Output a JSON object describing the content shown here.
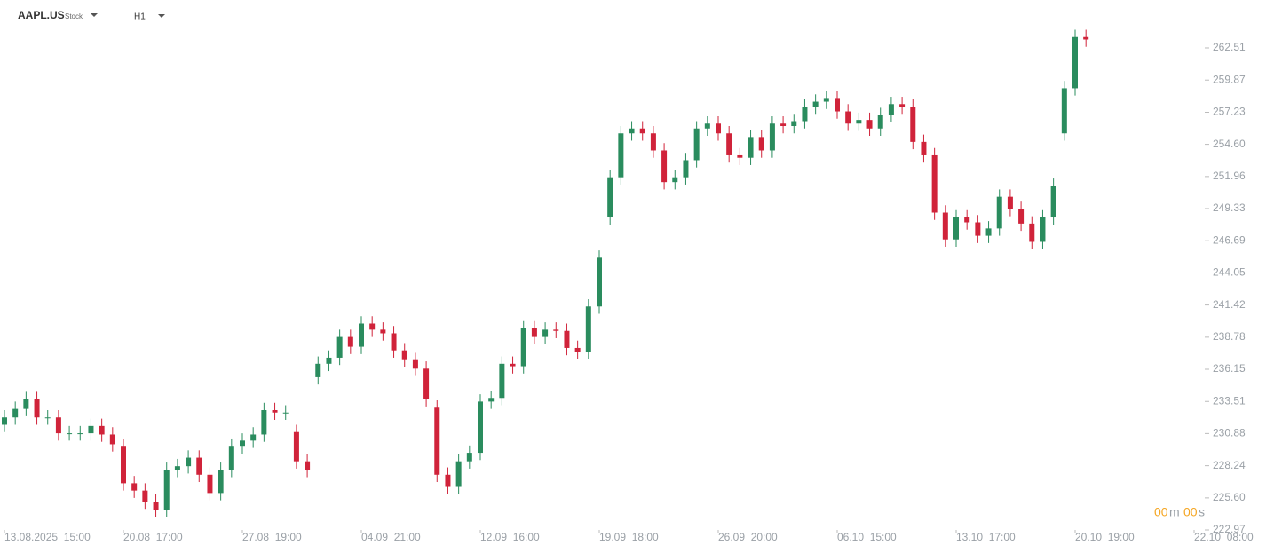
{
  "header": {
    "symbol": "AAPL.US",
    "symbol_type": "Stock",
    "timeframe": "H1"
  },
  "countdown": {
    "minutes": "00",
    "minutes_unit": "m",
    "seconds": "00",
    "seconds_unit": "s"
  },
  "chart_data": {
    "type": "candlestick",
    "categories": [
      "13.08.2025  15:00",
      null,
      null,
      null,
      null,
      null,
      null,
      null,
      null,
      null,
      null,
      "20.08  17:00",
      null,
      null,
      null,
      null,
      null,
      null,
      null,
      null,
      null,
      null,
      "27.08  19:00",
      null,
      null,
      null,
      null,
      null,
      null,
      null,
      null,
      null,
      null,
      "04.09  21:00",
      null,
      null,
      null,
      null,
      null,
      null,
      null,
      null,
      null,
      null,
      "12.09  16:00",
      null,
      null,
      null,
      null,
      null,
      null,
      null,
      null,
      null,
      null,
      "19.09  18:00",
      null,
      null,
      null,
      null,
      null,
      null,
      null,
      null,
      null,
      null,
      "26.09  20:00",
      null,
      null,
      null,
      null,
      null,
      null,
      null,
      null,
      null,
      null,
      "06.10  15:00",
      null,
      null,
      null,
      null,
      null,
      null,
      null,
      null,
      null,
      null,
      "13.10  17:00",
      null,
      null,
      null,
      null,
      null,
      null,
      null,
      null,
      null,
      null,
      "20.10  19:00",
      null,
      null,
      null,
      null,
      null,
      null,
      null,
      null,
      null,
      null,
      "22.10  08:00"
    ],
    "open": [
      231.6,
      232.2,
      232.9,
      233.7,
      232.2,
      232.2,
      230.9,
      230.9,
      230.9,
      231.5,
      230.8,
      229.8,
      226.8,
      226.2,
      225.3,
      224.6,
      227.9,
      228.2,
      228.9,
      227.5,
      226.0,
      227.9,
      229.8,
      230.3,
      230.8,
      232.8,
      232.6,
      231.0,
      228.6,
      235.5,
      236.6,
      237.1,
      238.8,
      238.0,
      239.9,
      239.4,
      239.1,
      237.7,
      236.9,
      236.2,
      233.0,
      227.5,
      226.5,
      228.6,
      229.3,
      233.5,
      233.8,
      236.6,
      236.4,
      239.5,
      238.8,
      239.4,
      239.3,
      237.9,
      237.6,
      241.3,
      248.6,
      251.9,
      255.5,
      255.9,
      255.5,
      254.1,
      251.5,
      251.9,
      253.3,
      255.9,
      256.3,
      255.5,
      253.7,
      253.5,
      255.2,
      254.1,
      256.3,
      256.1,
      256.5,
      257.7,
      258.1,
      258.4,
      257.3,
      256.3,
      256.6,
      255.9,
      257.0,
      257.9,
      257.7,
      254.8,
      253.7,
      249.0,
      246.8,
      248.6,
      248.2,
      247.1,
      247.7,
      250.3,
      249.3,
      248.1,
      246.6,
      248.6,
      255.5,
      259.2,
      263.4,
      null,
      null,
      null,
      null,
      null,
      null,
      null,
      null,
      null,
      null
    ],
    "high": [
      232.8,
      233.5,
      234.3,
      234.3,
      232.8,
      232.8,
      231.5,
      231.5,
      232.1,
      232.1,
      231.4,
      230.4,
      227.4,
      226.8,
      225.9,
      228.5,
      228.8,
      229.5,
      229.5,
      228.1,
      228.5,
      230.4,
      230.9,
      231.4,
      233.4,
      233.4,
      233.2,
      231.6,
      229.2,
      237.2,
      237.7,
      239.4,
      239.4,
      240.5,
      240.5,
      240.0,
      239.7,
      238.3,
      237.5,
      236.8,
      233.6,
      228.1,
      229.2,
      229.9,
      234.1,
      234.4,
      237.2,
      237.2,
      240.1,
      240.1,
      240.0,
      240.0,
      239.9,
      238.5,
      241.9,
      245.9,
      252.5,
      256.1,
      256.5,
      256.5,
      256.1,
      254.7,
      252.5,
      253.9,
      256.5,
      256.9,
      256.9,
      256.1,
      254.3,
      255.8,
      255.8,
      256.9,
      256.9,
      257.1,
      258.3,
      258.7,
      259.0,
      259.0,
      257.9,
      257.2,
      257.2,
      257.6,
      258.5,
      258.5,
      258.3,
      255.4,
      254.3,
      249.6,
      249.2,
      249.2,
      248.8,
      248.3,
      250.9,
      250.9,
      249.9,
      248.7,
      249.2,
      251.8,
      259.8,
      264.0,
      264.0,
      null,
      null,
      null,
      null,
      null,
      null,
      null,
      null,
      null,
      null
    ],
    "low": [
      231.0,
      231.6,
      232.3,
      231.6,
      231.6,
      230.3,
      230.3,
      230.3,
      230.3,
      230.2,
      229.4,
      226.2,
      225.6,
      224.7,
      224.0,
      224.0,
      227.3,
      227.6,
      226.9,
      225.4,
      225.4,
      227.3,
      229.2,
      229.7,
      230.2,
      232.0,
      232.0,
      228.0,
      227.3,
      234.9,
      236.0,
      236.5,
      237.4,
      237.4,
      238.8,
      238.5,
      237.1,
      236.3,
      235.6,
      233.1,
      226.9,
      225.9,
      225.9,
      228.0,
      228.7,
      232.9,
      233.2,
      235.8,
      235.8,
      238.2,
      238.2,
      238.7,
      237.3,
      237.0,
      237.0,
      240.7,
      248.0,
      251.3,
      254.9,
      254.9,
      253.5,
      250.9,
      250.9,
      251.3,
      252.7,
      255.3,
      254.9,
      253.1,
      252.9,
      252.9,
      253.5,
      253.5,
      255.5,
      255.5,
      255.9,
      257.1,
      257.5,
      256.7,
      255.7,
      255.7,
      255.3,
      255.3,
      256.4,
      257.1,
      254.2,
      253.1,
      248.4,
      246.2,
      246.2,
      247.6,
      246.5,
      246.5,
      247.1,
      248.7,
      247.5,
      246.0,
      246.0,
      248.0,
      254.9,
      258.6,
      262.6,
      null,
      null,
      null,
      null,
      null,
      null,
      null,
      null,
      null,
      null
    ],
    "close": [
      232.2,
      232.9,
      233.7,
      232.2,
      232.2,
      230.9,
      230.9,
      230.9,
      231.5,
      230.8,
      230.0,
      226.8,
      226.2,
      225.3,
      224.6,
      227.9,
      228.2,
      228.9,
      227.5,
      226.0,
      227.9,
      229.8,
      230.3,
      230.8,
      232.8,
      232.6,
      232.6,
      228.6,
      227.9,
      236.6,
      237.1,
      238.8,
      238.0,
      239.9,
      239.4,
      239.1,
      237.7,
      236.9,
      236.2,
      233.7,
      227.5,
      226.5,
      228.6,
      229.3,
      233.5,
      233.8,
      236.6,
      236.4,
      239.5,
      238.8,
      239.4,
      239.3,
      237.9,
      237.6,
      241.3,
      245.3,
      251.9,
      255.5,
      255.9,
      255.5,
      254.1,
      251.5,
      251.9,
      253.3,
      255.9,
      256.3,
      255.5,
      253.7,
      253.5,
      255.2,
      254.1,
      256.3,
      256.1,
      256.5,
      257.7,
      258.1,
      258.4,
      257.3,
      256.3,
      256.6,
      255.9,
      257.0,
      257.9,
      257.7,
      254.8,
      253.7,
      249.0,
      246.8,
      248.6,
      248.2,
      247.1,
      247.7,
      250.3,
      249.3,
      248.1,
      246.6,
      248.6,
      251.2,
      259.2,
      263.4,
      263.2,
      null,
      null,
      null,
      null,
      null,
      null,
      null,
      null,
      null,
      null
    ],
    "up_color": "#2a8c5e",
    "down_color": "#d0233a",
    "ylim": [
      222.97,
      266.44
    ],
    "yticks": [
      222.97,
      {
        "value": 225.6,
        "label": "225.60"
      },
      228.24,
      230.88,
      233.51,
      236.15,
      238.78,
      241.42,
      244.05,
      246.69,
      249.33,
      251.96,
      {
        "value": 254.6,
        "label": "254.60"
      },
      257.23,
      259.87,
      262.51
    ],
    "grid": false
  }
}
